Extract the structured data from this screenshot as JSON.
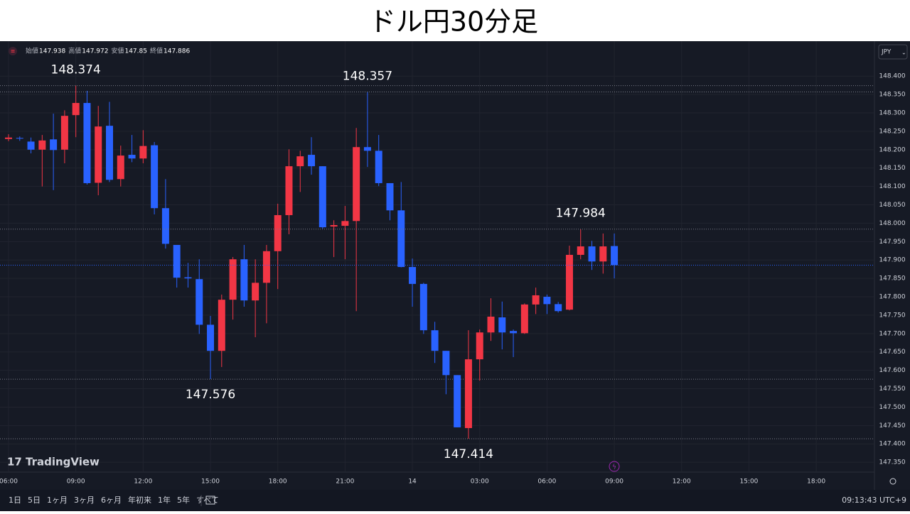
{
  "chart_data": {
    "type": "candlestick",
    "title": "ドル円30分足",
    "currency": "JPY",
    "legend": [
      {
        "label": "始値",
        "value": 147.938
      },
      {
        "label": "高値",
        "value": 147.972
      },
      {
        "label": "安値",
        "value": 147.85
      },
      {
        "label": "終値",
        "value": 147.886
      }
    ],
    "up_color": "#f23645",
    "down_color": "#2962ff",
    "open": [
      148.229,
      148.232,
      148.222,
      148.2,
      148.228,
      148.2,
      148.294,
      148.327,
      148.11,
      148.265,
      148.12,
      148.186,
      148.176,
      148.212,
      148.041,
      147.941,
      147.853,
      147.848,
      147.724,
      147.653,
      147.792,
      147.902,
      147.79,
      147.838,
      147.924,
      148.022,
      148.155,
      148.186,
      148.155,
      147.991,
      147.993,
      148.006,
      148.207,
      148.197,
      148.109,
      148.035,
      147.881,
      147.835,
      147.709,
      147.653,
      147.587,
      147.443,
      147.63,
      147.703,
      147.744,
      147.707,
      147.701,
      147.779,
      147.8,
      147.78,
      147.765,
      147.914,
      147.937,
      147.896,
      147.938
    ],
    "high": [
      148.242,
      148.236,
      148.233,
      148.24,
      148.298,
      148.307,
      148.374,
      148.36,
      148.319,
      148.33,
      148.211,
      148.24,
      148.253,
      148.221,
      148.12,
      147.941,
      147.892,
      147.902,
      147.748,
      147.806,
      147.908,
      147.941,
      147.902,
      147.941,
      148.053,
      148.201,
      148.197,
      148.234,
      148.155,
      148.008,
      148.047,
      148.259,
      148.357,
      148.24,
      148.109,
      148.112,
      147.904,
      147.838,
      147.732,
      147.653,
      147.587,
      147.709,
      147.711,
      147.796,
      147.787,
      147.711,
      147.782,
      147.825,
      147.806,
      147.786,
      147.939,
      147.984,
      147.952,
      147.972,
      147.972
    ],
    "low": [
      148.223,
      148.224,
      148.19,
      148.1,
      148.09,
      148.163,
      148.234,
      148.105,
      148.076,
      148.112,
      148.1,
      148.166,
      148.163,
      148.024,
      147.931,
      147.825,
      147.825,
      147.699,
      147.576,
      147.609,
      147.738,
      147.773,
      147.69,
      147.728,
      147.821,
      147.97,
      148.085,
      148.132,
      147.985,
      147.908,
      147.902,
      147.761,
      148.153,
      148.101,
      148.008,
      147.88,
      147.773,
      147.699,
      147.62,
      147.535,
      147.445,
      147.414,
      147.572,
      147.68,
      147.657,
      147.636,
      147.699,
      147.753,
      147.753,
      147.757,
      147.763,
      147.902,
      147.873,
      147.863,
      147.85
    ],
    "close": [
      148.233,
      148.23,
      148.2,
      148.225,
      148.199,
      148.292,
      148.327,
      148.109,
      148.263,
      148.118,
      148.184,
      148.176,
      148.21,
      148.041,
      147.944,
      147.852,
      147.85,
      147.724,
      147.653,
      147.792,
      147.902,
      147.79,
      147.838,
      147.924,
      148.022,
      148.155,
      148.182,
      148.155,
      147.989,
      147.995,
      148.006,
      148.207,
      148.197,
      148.109,
      148.035,
      147.881,
      147.835,
      147.709,
      147.653,
      147.587,
      147.445,
      147.63,
      147.703,
      147.746,
      147.703,
      147.701,
      147.779,
      147.804,
      147.78,
      147.761,
      147.914,
      147.937,
      147.896,
      147.937,
      147.886
    ],
    "high_labels": [
      null,
      null,
      null,
      null,
      null,
      null,
      "148.374",
      null,
      null,
      null,
      null,
      null,
      null,
      null,
      null,
      null,
      null,
      null,
      null,
      null,
      null,
      null,
      null,
      null,
      null,
      null,
      null,
      null,
      null,
      null,
      null,
      null,
      "148.357",
      null,
      null,
      null,
      null,
      null,
      null,
      null,
      null,
      null,
      null,
      null,
      null,
      null,
      null,
      null,
      null,
      null,
      null,
      "147.984",
      null,
      null,
      null
    ],
    "low_labels": [
      null,
      null,
      null,
      null,
      null,
      null,
      null,
      null,
      null,
      null,
      null,
      null,
      null,
      null,
      null,
      null,
      null,
      null,
      "147.576",
      null,
      null,
      null,
      null,
      null,
      null,
      null,
      null,
      null,
      null,
      null,
      null,
      null,
      null,
      null,
      null,
      null,
      null,
      null,
      null,
      null,
      null,
      "147.414",
      null,
      null,
      null,
      null,
      null,
      null,
      null,
      null,
      null,
      null,
      null,
      null,
      null
    ],
    "xlim": [
      -0.76,
      77.19
    ],
    "xticks": [
      {
        "value": 0,
        "label": "06:00"
      },
      {
        "value": 6,
        "label": "09:00"
      },
      {
        "value": 12,
        "label": "12:00"
      },
      {
        "value": 18,
        "label": "15:00"
      },
      {
        "value": 24,
        "label": "18:00"
      },
      {
        "value": 30,
        "label": "21:00"
      },
      {
        "value": 36,
        "label": "14"
      },
      {
        "value": 42,
        "label": "03:00"
      },
      {
        "value": 48,
        "label": "06:00"
      },
      {
        "value": 54,
        "label": "09:00"
      },
      {
        "value": 60,
        "label": "12:00"
      },
      {
        "value": 66,
        "label": "15:00"
      },
      {
        "value": 72,
        "label": "18:00"
      }
    ],
    "ylim": [
      147.275,
      148.495
    ],
    "yticks": [
      {
        "value": 147.35,
        "label": "147.350"
      },
      {
        "value": 147.4,
        "label": "147.400"
      },
      {
        "value": 147.45,
        "label": "147.450"
      },
      {
        "value": 147.5,
        "label": "147.500"
      },
      {
        "value": 147.55,
        "label": "147.550"
      },
      {
        "value": 147.6,
        "label": "147.600"
      },
      {
        "value": 147.65,
        "label": "147.650"
      },
      {
        "value": 147.7,
        "label": "147.700"
      },
      {
        "value": 147.75,
        "label": "147.750"
      },
      {
        "value": 147.8,
        "label": "147.800"
      },
      {
        "value": 147.85,
        "label": "147.850"
      },
      {
        "value": 147.9,
        "label": "147.900"
      },
      {
        "value": 147.95,
        "label": "147.950"
      },
      {
        "value": 148.0,
        "label": "148.000"
      },
      {
        "value": 148.05,
        "label": "148.050"
      },
      {
        "value": 148.1,
        "label": "148.100"
      },
      {
        "value": 148.15,
        "label": "148.150"
      },
      {
        "value": 148.2,
        "label": "148.200"
      },
      {
        "value": 148.25,
        "label": "148.250"
      },
      {
        "value": 148.3,
        "label": "148.300"
      },
      {
        "value": 148.35,
        "label": "148.350"
      },
      {
        "value": 148.4,
        "label": "148.400"
      }
    ],
    "grid": true
  },
  "branding": "TradingView",
  "toolbar": {
    "ranges": [
      "1日",
      "5日",
      "1ヶ月",
      "3ヶ月",
      "6ヶ月",
      "年初来",
      "1年",
      "5年",
      "すべて"
    ],
    "clock": "09:13:43 UTC+9"
  }
}
